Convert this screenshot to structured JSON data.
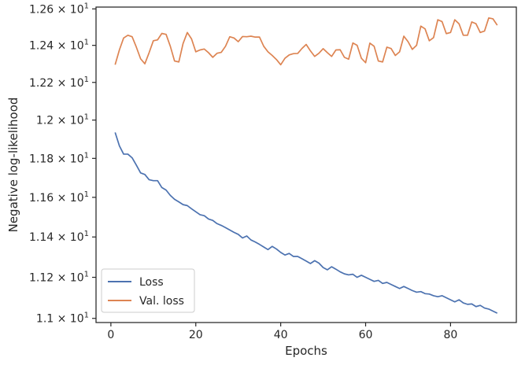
{
  "chart_data": {
    "type": "line",
    "xlabel": "Epochs",
    "ylabel": "Negative log-likelihood",
    "xlim": [
      -3.5,
      95.5
    ],
    "ylim": [
      10.98,
      12.61
    ],
    "y_scale": "log",
    "grid": false,
    "legend_position": "lower-left",
    "x_ticks": [
      0,
      20,
      40,
      60,
      80
    ],
    "x_tick_labels": [
      "0",
      "20",
      "40",
      "60",
      "80"
    ],
    "y_ticks": [
      11.0,
      11.2,
      11.4,
      11.6,
      11.8,
      12.0,
      12.2,
      12.4,
      12.6
    ],
    "y_tick_mantissas": [
      "1.1",
      "1.12",
      "1.14",
      "1.16",
      "1.18",
      "1.2",
      "1.22",
      "1.24",
      "1.26"
    ],
    "y_tick_base": "× 10",
    "y_tick_exponent": "1",
    "x": [
      1,
      2,
      3,
      4,
      5,
      6,
      7,
      8,
      9,
      10,
      11,
      12,
      13,
      14,
      15,
      16,
      17,
      18,
      19,
      20,
      21,
      22,
      23,
      24,
      25,
      26,
      27,
      28,
      29,
      30,
      31,
      32,
      33,
      34,
      35,
      36,
      37,
      38,
      39,
      40,
      41,
      42,
      43,
      44,
      45,
      46,
      47,
      48,
      49,
      50,
      51,
      52,
      53,
      54,
      55,
      56,
      57,
      58,
      59,
      60,
      61,
      62,
      63,
      64,
      65,
      66,
      67,
      68,
      69,
      70,
      71,
      72,
      73,
      74,
      75,
      76,
      77,
      78,
      79,
      80,
      81,
      82,
      83,
      84,
      85,
      86,
      87,
      88,
      89,
      90,
      91
    ],
    "series": [
      {
        "name": "Loss",
        "color": "#4c72b0",
        "values": [
          11.935,
          11.865,
          11.822,
          11.822,
          11.803,
          11.765,
          11.725,
          11.717,
          11.69,
          11.685,
          11.685,
          11.65,
          11.637,
          11.61,
          11.59,
          11.577,
          11.563,
          11.558,
          11.542,
          11.527,
          11.512,
          11.507,
          11.49,
          11.483,
          11.467,
          11.458,
          11.447,
          11.435,
          11.423,
          11.413,
          11.395,
          11.405,
          11.385,
          11.375,
          11.363,
          11.35,
          11.337,
          11.353,
          11.34,
          11.323,
          11.31,
          11.318,
          11.303,
          11.303,
          11.292,
          11.28,
          11.268,
          11.282,
          11.27,
          11.248,
          11.237,
          11.252,
          11.24,
          11.227,
          11.217,
          11.212,
          11.215,
          11.2,
          11.21,
          11.2,
          11.19,
          11.18,
          11.185,
          11.17,
          11.175,
          11.165,
          11.155,
          11.145,
          11.155,
          11.145,
          11.135,
          11.127,
          11.13,
          11.12,
          11.118,
          11.11,
          11.105,
          11.11,
          11.1,
          11.09,
          11.08,
          11.09,
          11.075,
          11.068,
          11.07,
          11.057,
          11.063,
          11.05,
          11.045,
          11.035,
          11.025
        ]
      },
      {
        "name": "Val. loss",
        "color": "#dd8452",
        "values": [
          12.295,
          12.375,
          12.44,
          12.455,
          12.447,
          12.39,
          12.327,
          12.3,
          12.36,
          12.425,
          12.43,
          12.465,
          12.46,
          12.395,
          12.315,
          12.31,
          12.41,
          12.47,
          12.435,
          12.365,
          12.375,
          12.38,
          12.36,
          12.335,
          12.357,
          12.362,
          12.395,
          12.447,
          12.44,
          12.42,
          12.448,
          12.447,
          12.45,
          12.445,
          12.445,
          12.395,
          12.365,
          12.345,
          12.323,
          12.295,
          12.33,
          12.348,
          12.355,
          12.356,
          12.383,
          12.405,
          12.37,
          12.34,
          12.357,
          12.382,
          12.36,
          12.34,
          12.375,
          12.376,
          12.335,
          12.325,
          12.413,
          12.4,
          12.33,
          12.306,
          12.412,
          12.395,
          12.315,
          12.31,
          12.39,
          12.383,
          12.345,
          12.365,
          12.45,
          12.42,
          12.378,
          12.4,
          12.505,
          12.49,
          12.425,
          12.442,
          12.54,
          12.53,
          12.464,
          12.47,
          12.54,
          12.518,
          12.455,
          12.455,
          12.528,
          12.518,
          12.47,
          12.478,
          12.55,
          12.545,
          12.51
        ]
      }
    ]
  }
}
